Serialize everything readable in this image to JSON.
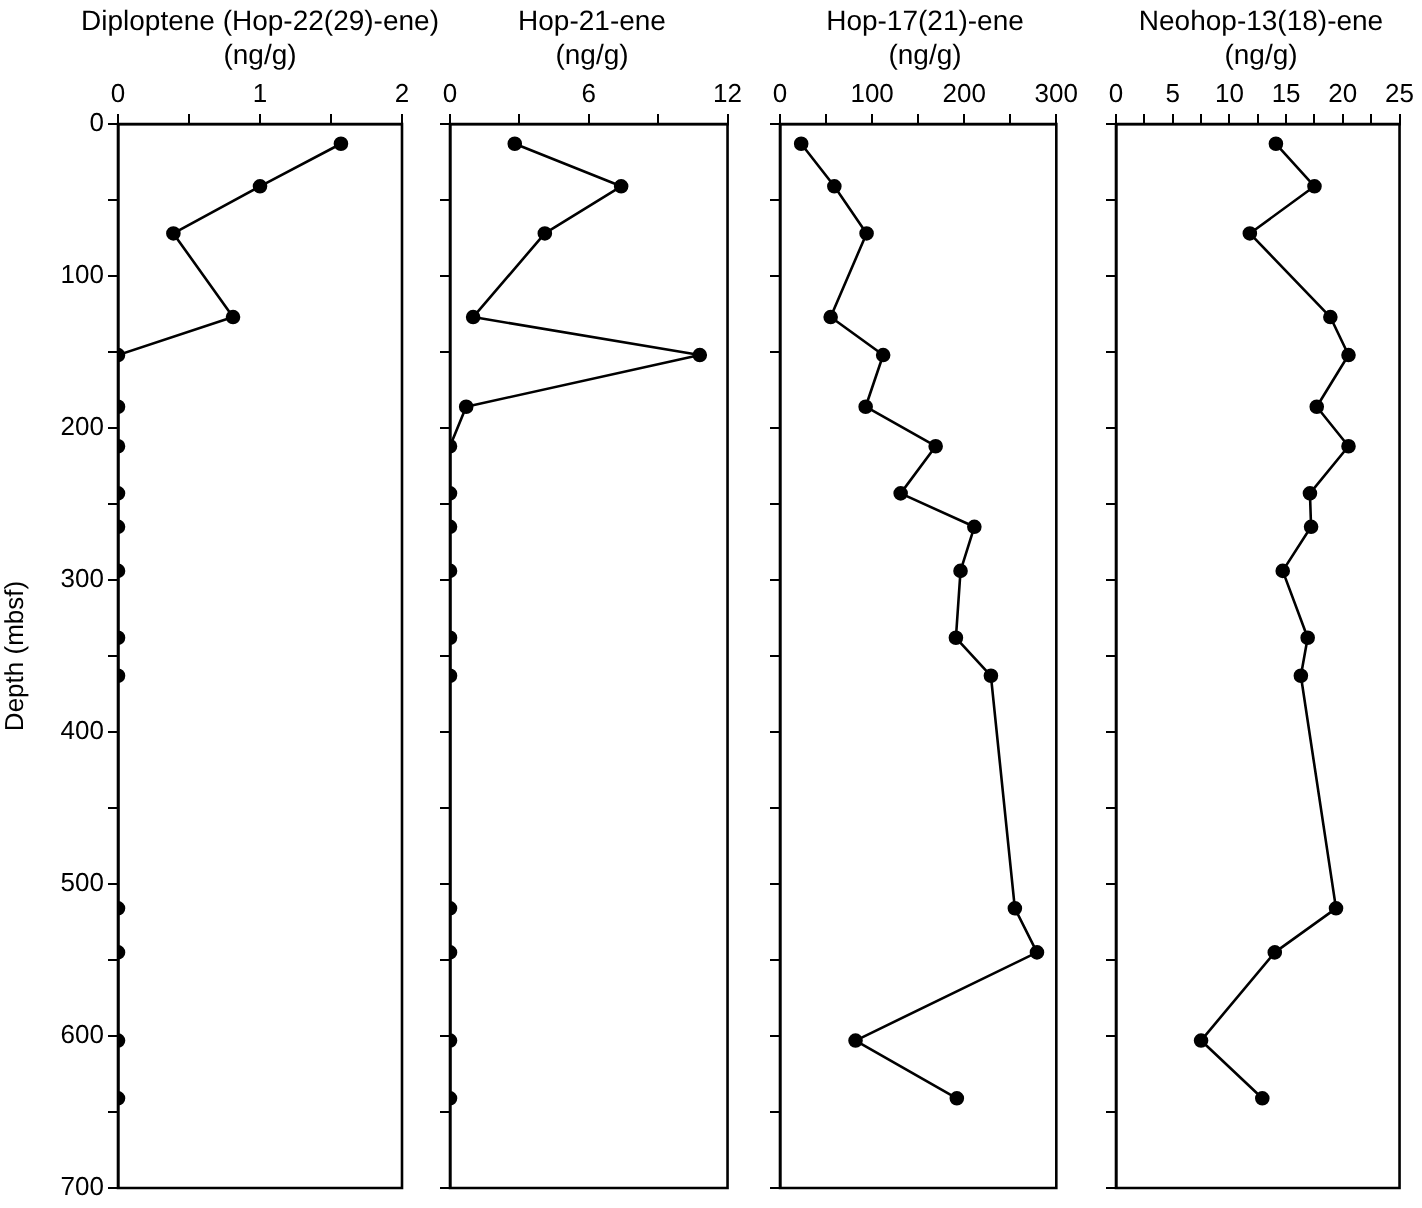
{
  "chart_data": [
    {
      "type": "line",
      "title": "Diploptene (Hop-22(29)-ene)",
      "xlabel": "(ng/g)",
      "ylabel": "Depth (mbsf)",
      "marker": "circle",
      "grid": false,
      "x": [
        1.57,
        1.0,
        0.39,
        0.81,
        0,
        0,
        0,
        0,
        0,
        0,
        0,
        0,
        0,
        0,
        0,
        0
      ],
      "series": [
        {
          "color": "#000000",
          "values": [
            13,
            41,
            72,
            127,
            152,
            186,
            212,
            243,
            265,
            294,
            338,
            363,
            516,
            545,
            603,
            641
          ]
        }
      ],
      "xlim": [
        0,
        2
      ],
      "xticks": [
        0,
        {
          "value": 0.5,
          "label": null
        },
        1,
        {
          "value": 1.5,
          "label": null
        },
        2
      ],
      "ylim": [
        700,
        0
      ],
      "yticks": [
        0,
        {
          "value": 50,
          "label": null
        },
        100,
        {
          "value": 150,
          "label": null
        },
        200,
        {
          "value": 250,
          "label": null
        },
        300,
        {
          "value": 350,
          "label": null
        },
        400,
        {
          "value": 450,
          "label": null
        },
        500,
        {
          "value": 550,
          "label": null
        },
        600,
        {
          "value": 650,
          "label": null
        },
        700
      ]
    },
    {
      "type": "line",
      "title": "Hop-21-ene",
      "xlabel": "(ng/g)",
      "marker": "circle",
      "grid": false,
      "tick_labels": "x",
      "x": [
        2.8,
        7.4,
        4.1,
        1.0,
        10.8,
        0.7,
        0,
        0,
        0,
        0,
        0,
        0,
        0,
        0,
        0,
        0
      ],
      "series": [
        {
          "color": "#000000",
          "values": [
            13,
            41,
            72,
            127,
            152,
            186,
            212,
            243,
            265,
            294,
            338,
            363,
            516,
            545,
            603,
            641
          ]
        }
      ],
      "xlim": [
        0,
        12
      ],
      "xticks": [
        0,
        {
          "value": 3,
          "label": null
        },
        6,
        {
          "value": 9,
          "label": null
        },
        12
      ],
      "ylim": [
        700,
        0
      ],
      "yticks": [
        0,
        {
          "value": 50,
          "label": null
        },
        100,
        {
          "value": 150,
          "label": null
        },
        200,
        {
          "value": 250,
          "label": null
        },
        300,
        {
          "value": 350,
          "label": null
        },
        400,
        {
          "value": 450,
          "label": null
        },
        500,
        {
          "value": 550,
          "label": null
        },
        600,
        {
          "value": 650,
          "label": null
        },
        700
      ]
    },
    {
      "type": "line",
      "title": "Hop-17(21)-ene",
      "xlabel": "(ng/g)",
      "marker": "circle",
      "grid": false,
      "tick_labels": "x",
      "x": [
        23,
        59,
        94,
        55,
        112,
        93,
        169,
        131,
        211,
        196,
        191,
        229,
        255,
        279,
        82,
        192
      ],
      "series": [
        {
          "color": "#000000",
          "values": [
            13,
            41,
            72,
            127,
            152,
            186,
            212,
            243,
            265,
            294,
            338,
            363,
            516,
            545,
            603,
            641
          ]
        }
      ],
      "xlim": [
        0,
        300
      ],
      "xticks": [
        0,
        {
          "value": 50,
          "label": null
        },
        100,
        {
          "value": 150,
          "label": null
        },
        200,
        {
          "value": 250,
          "label": null
        },
        300
      ],
      "ylim": [
        700,
        0
      ],
      "yticks": [
        0,
        {
          "value": 50,
          "label": null
        },
        100,
        {
          "value": 150,
          "label": null
        },
        200,
        {
          "value": 250,
          "label": null
        },
        300,
        {
          "value": 350,
          "label": null
        },
        400,
        {
          "value": 450,
          "label": null
        },
        500,
        {
          "value": 550,
          "label": null
        },
        600,
        {
          "value": 650,
          "label": null
        },
        700
      ]
    },
    {
      "type": "line",
      "title": "Neohop-13(18)-ene",
      "xlabel": "(ng/g)",
      "marker": "circle",
      "grid": false,
      "tick_labels": "x",
      "x": [
        14.1,
        17.5,
        11.8,
        18.9,
        20.5,
        17.7,
        20.5,
        17.1,
        17.2,
        14.7,
        16.9,
        16.3,
        19.4,
        14.0,
        7.5,
        12.9
      ],
      "series": [
        {
          "color": "#000000",
          "values": [
            13,
            41,
            72,
            127,
            152,
            186,
            212,
            243,
            265,
            294,
            338,
            363,
            516,
            545,
            603,
            641
          ]
        }
      ],
      "xlim": [
        0,
        25
      ],
      "xticks": [
        0,
        {
          "value": 2.5,
          "label": null
        },
        5,
        {
          "value": 7.5,
          "label": null
        },
        10,
        {
          "value": 12.5,
          "label": null
        },
        15,
        {
          "value": 17.5,
          "label": null
        },
        20,
        {
          "value": 22.5,
          "label": null
        },
        25
      ],
      "ylim": [
        700,
        0
      ],
      "yticks": [
        0,
        {
          "value": 50,
          "label": null
        },
        100,
        {
          "value": 150,
          "label": null
        },
        200,
        {
          "value": 250,
          "label": null
        },
        300,
        {
          "value": 350,
          "label": null
        },
        400,
        {
          "value": 450,
          "label": null
        },
        500,
        {
          "value": 550,
          "label": null
        },
        600,
        {
          "value": 650,
          "label": null
        },
        700
      ]
    }
  ]
}
